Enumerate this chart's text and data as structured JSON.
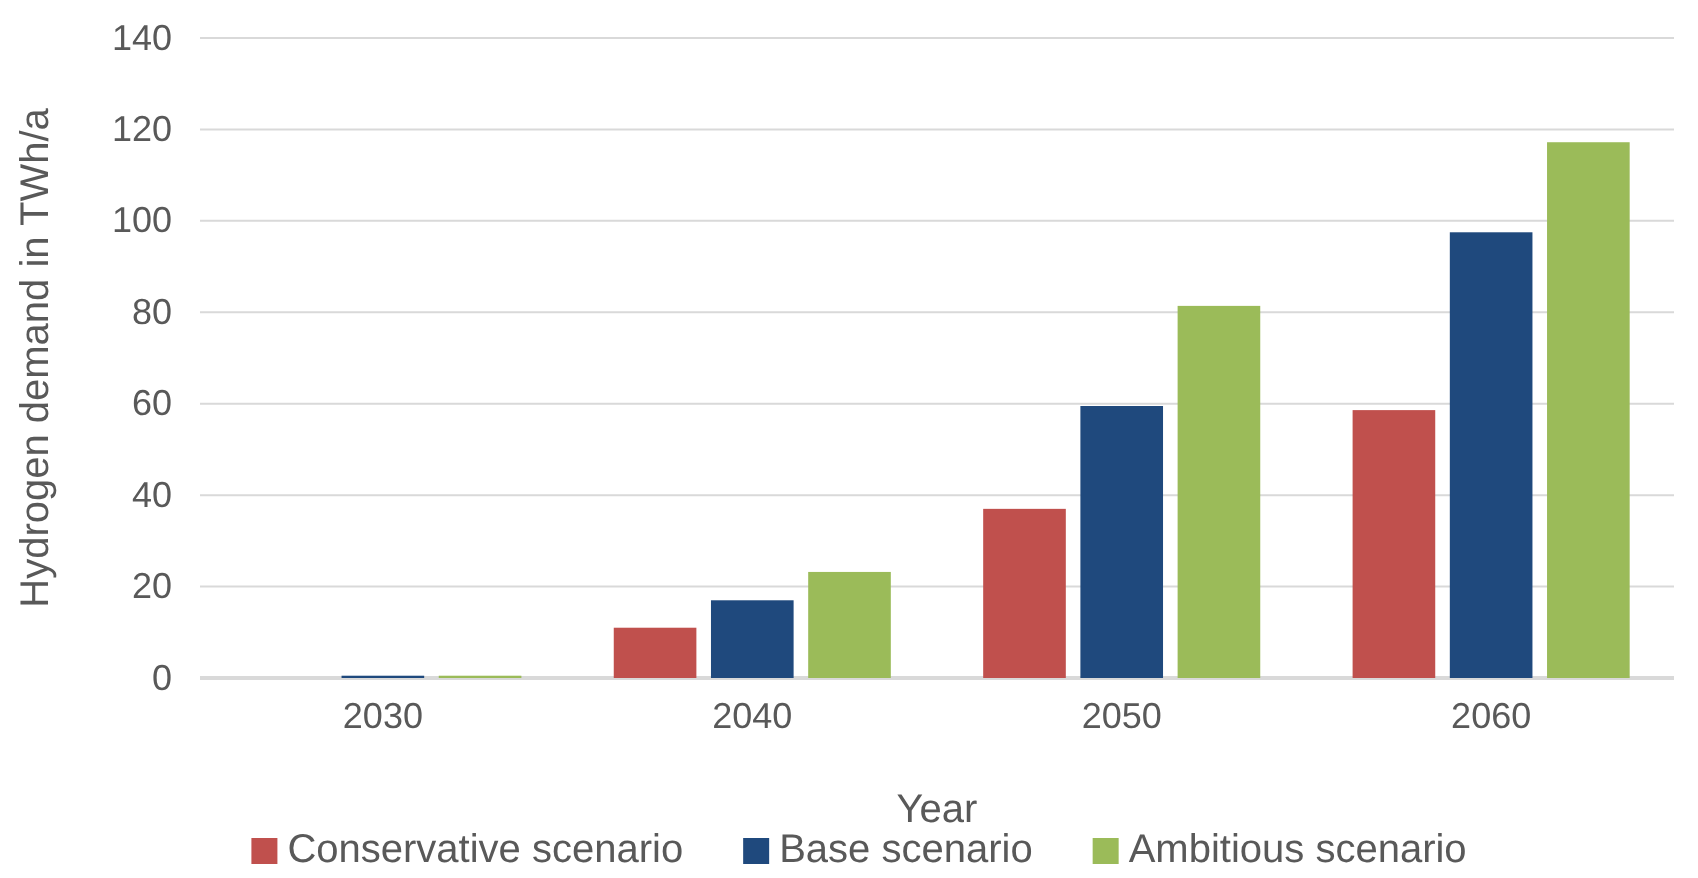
{
  "chart_data": {
    "type": "bar",
    "xlabel": "Year",
    "ylabel": "Hydrogen demand in TWh/a",
    "categories": [
      "2030",
      "2040",
      "2050",
      "2060"
    ],
    "series": [
      {
        "name": "Conservative scenario",
        "color": "#c0504d",
        "values": [
          0,
          11,
          37,
          58.6
        ]
      },
      {
        "name": "Base scenario",
        "color": "#1f497d",
        "values": [
          0.5,
          17,
          59.5,
          97.5
        ]
      },
      {
        "name": "Ambitious scenario",
        "color": "#9bbb59",
        "values": [
          0.5,
          23.2,
          81.4,
          117.2
        ]
      }
    ],
    "ylim": [
      0,
      140
    ],
    "yticks": [
      0,
      20,
      40,
      60,
      80,
      100,
      120,
      140
    ],
    "grid": "y",
    "legend": "bottom"
  }
}
